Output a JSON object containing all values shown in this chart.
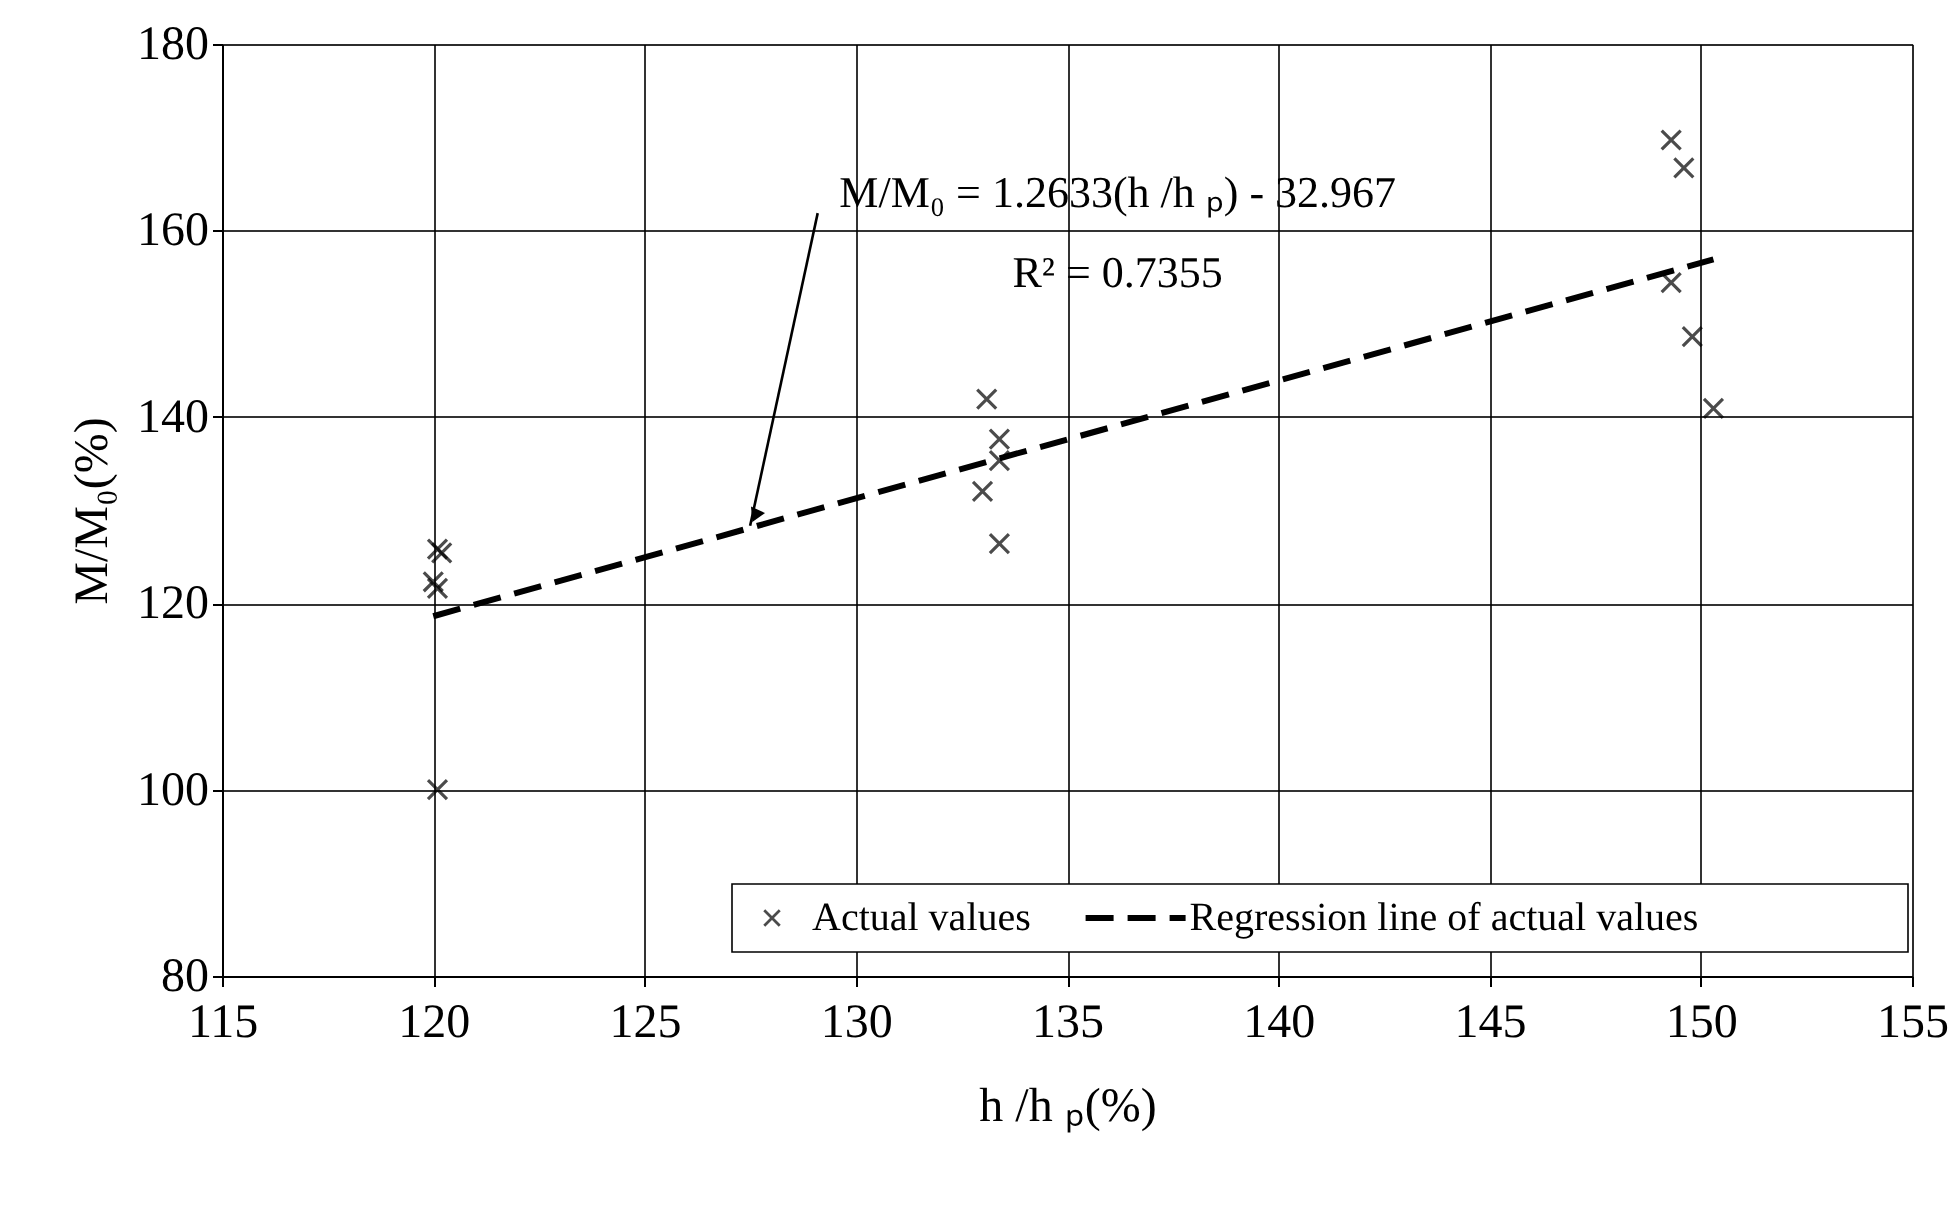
{
  "chart_data": {
    "type": "scatter",
    "xlabel": "h /h ₚ(%)",
    "ylabel": "M/M₀(%)",
    "xlim": [
      115,
      155
    ],
    "xticks": [
      115,
      120,
      125,
      130,
      135,
      140,
      145,
      150,
      155
    ],
    "ylim": [
      80,
      180
    ],
    "yticks": [
      80,
      100,
      120,
      140,
      160,
      180
    ],
    "grid": true,
    "legend": "bottom right",
    "series": [
      {
        "name": "Actual values",
        "type": "scatter",
        "marker": "cross",
        "color": "#000000",
        "x": [
          120.1,
          120.2,
          120.0,
          120.1,
          120.1,
          133.1,
          133.4,
          133.4,
          133.0,
          133.4,
          149.3,
          149.6,
          149.3,
          149.8,
          150.3
        ],
        "values": [
          125.8,
          125.4,
          122.3,
          121.6,
          100.0,
          141.9,
          137.6,
          135.3,
          132.0,
          126.4,
          169.7,
          166.7,
          154.4,
          148.6,
          140.9
        ]
      },
      {
        "name": "Regression line of actual values",
        "type": "line",
        "line_style": "dashed",
        "color": "#000000",
        "x": [
          120.0,
          150.3
        ],
        "values": [
          118.6,
          156.9
        ]
      }
    ],
    "annotations": [
      {
        "text": "M/M₀ = 1.2633(h /h ₚ) - 32.967",
        "x": 127.5,
        "y": 128.3
      },
      "R² = 0.7355"
    ]
  }
}
